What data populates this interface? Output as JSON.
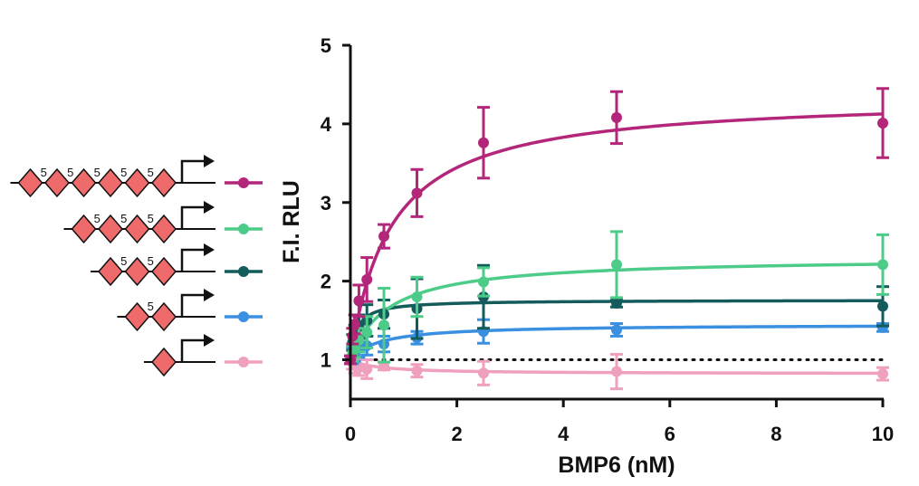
{
  "chart_data": {
    "type": "scatter",
    "xlabel": "BMP6 (nM)",
    "ylabel": "F.I. RLU",
    "xlim": [
      0,
      10
    ],
    "ylim": [
      0.5,
      5
    ],
    "xticks": [
      0,
      2,
      4,
      6,
      8,
      10
    ],
    "yticks": [
      1,
      2,
      3,
      4,
      5
    ],
    "baseline": 1,
    "grid": false,
    "legend": "left (construct diagrams)",
    "series": [
      {
        "color": "#b3267a",
        "construct": [
          "5",
          "5",
          "5",
          "5",
          "5"
        ],
        "sites": 6,
        "x": [
          0,
          0.04,
          0.08,
          0.16,
          0.31,
          0.63,
          1.25,
          2.5,
          5,
          10
        ],
        "y": [
          1.0,
          1.3,
          1.45,
          1.75,
          2.02,
          2.57,
          3.12,
          3.76,
          4.08,
          4.01
        ],
        "err": [
          0.05,
          0.1,
          0.12,
          0.2,
          0.28,
          0.15,
          0.3,
          0.45,
          0.33,
          0.44
        ],
        "fit": {
          "bottom": 1.0,
          "top": 4.36,
          "ec50": 0.75
        }
      },
      {
        "color": "#4ccc88",
        "construct": [
          "5",
          "5",
          "5"
        ],
        "sites": 4,
        "x": [
          0,
          0.04,
          0.08,
          0.16,
          0.31,
          0.63,
          1.25,
          2.5,
          5,
          10
        ],
        "y": [
          1.0,
          1.08,
          1.15,
          1.25,
          1.35,
          1.44,
          1.8,
          1.99,
          2.21,
          2.21
        ],
        "err": [
          0.05,
          0.1,
          0.12,
          0.15,
          0.2,
          0.47,
          0.25,
          0.18,
          0.42,
          0.38
        ],
        "fit": {
          "bottom": 1.0,
          "top": 2.3,
          "ec50": 0.7
        }
      },
      {
        "color": "#145c5c",
        "construct": [
          "5",
          "5"
        ],
        "sites": 3,
        "x": [
          0,
          0.04,
          0.08,
          0.16,
          0.31,
          0.63,
          1.25,
          2.5,
          5,
          10
        ],
        "y": [
          1.0,
          1.22,
          1.32,
          1.42,
          1.5,
          1.58,
          1.65,
          1.8,
          1.72,
          1.68
        ],
        "err": [
          0.05,
          0.1,
          0.12,
          0.15,
          0.2,
          0.18,
          0.38,
          0.4,
          0.05,
          0.25
        ],
        "fit": {
          "bottom": 1.0,
          "top": 1.76,
          "ec50": 0.12
        }
      },
      {
        "color": "#3a8fe0",
        "construct": [
          "5"
        ],
        "sites": 2,
        "x": [
          0,
          0.04,
          0.08,
          0.16,
          0.31,
          0.63,
          1.25,
          2.5,
          5,
          10
        ],
        "y": [
          1.0,
          1.05,
          1.1,
          1.15,
          1.18,
          1.2,
          1.28,
          1.36,
          1.38,
          1.41
        ],
        "err": [
          0.05,
          0.1,
          0.12,
          0.12,
          0.12,
          0.1,
          0.08,
          0.15,
          0.08,
          0.05
        ],
        "fit": {
          "bottom": 1.0,
          "top": 1.45,
          "ec50": 0.55
        }
      },
      {
        "color": "#f0a0bf",
        "construct": [],
        "sites": 1,
        "x": [
          0,
          0.04,
          0.08,
          0.16,
          0.31,
          0.63,
          1.25,
          2.5,
          5,
          10
        ],
        "y": [
          1.0,
          0.96,
          0.93,
          0.9,
          0.88,
          0.92,
          0.86,
          0.83,
          0.85,
          0.82
        ],
        "err": [
          0.05,
          0.08,
          0.1,
          0.1,
          0.12,
          0.05,
          0.08,
          0.15,
          0.22,
          0.08
        ],
        "fit": {
          "bottom": 1.0,
          "top": 0.82,
          "ec50": 0.5
        }
      }
    ]
  }
}
